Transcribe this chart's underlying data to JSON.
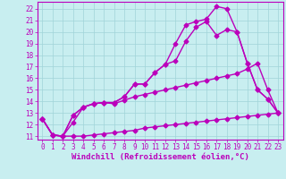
{
  "background_color": "#c8eef0",
  "grid_color": "#a0d4d8",
  "line_color": "#bb00bb",
  "marker": "D",
  "markersize": 2.5,
  "linewidth": 1.0,
  "xlim": [
    -0.5,
    23.5
  ],
  "ylim": [
    10.7,
    22.6
  ],
  "xticks": [
    0,
    1,
    2,
    3,
    4,
    5,
    6,
    7,
    8,
    9,
    10,
    11,
    12,
    13,
    14,
    15,
    16,
    17,
    18,
    19,
    20,
    21,
    22,
    23
  ],
  "yticks": [
    11,
    12,
    13,
    14,
    15,
    16,
    17,
    18,
    19,
    20,
    21,
    22
  ],
  "xlabel": "Windchill (Refroidissement éolien,°C)",
  "xlabel_fontsize": 6.5,
  "tick_fontsize": 5.5,
  "series": [
    {
      "x": [
        0,
        1,
        2,
        3,
        4,
        5,
        6,
        7,
        8,
        9,
        10,
        11,
        12,
        13,
        14,
        15,
        16,
        17,
        18,
        19,
        20,
        21,
        22,
        23
      ],
      "y": [
        12.5,
        11.1,
        11.0,
        11.0,
        11.0,
        11.1,
        11.2,
        11.3,
        11.4,
        11.5,
        11.7,
        11.8,
        11.9,
        12.0,
        12.1,
        12.2,
        12.3,
        12.4,
        12.5,
        12.6,
        12.7,
        12.8,
        12.9,
        13.0
      ]
    },
    {
      "x": [
        0,
        1,
        2,
        3,
        4,
        5,
        6,
        7,
        8,
        9,
        10,
        11,
        12,
        13,
        14,
        15,
        16,
        17,
        18,
        19,
        20,
        21,
        22,
        23
      ],
      "y": [
        12.5,
        11.1,
        11.0,
        12.2,
        13.5,
        13.8,
        13.9,
        13.8,
        14.1,
        14.4,
        14.6,
        14.8,
        15.0,
        15.2,
        15.4,
        15.6,
        15.8,
        16.0,
        16.2,
        16.4,
        16.8,
        17.3,
        15.0,
        13.0
      ]
    },
    {
      "x": [
        0,
        1,
        2,
        3,
        4,
        5,
        6,
        7,
        8,
        9,
        10,
        11,
        12,
        13,
        14,
        15,
        16,
        17,
        18,
        19,
        20,
        21,
        22,
        23
      ],
      "y": [
        12.5,
        11.1,
        11.0,
        12.8,
        13.5,
        13.8,
        13.9,
        13.9,
        14.4,
        15.5,
        15.5,
        16.5,
        17.2,
        17.5,
        19.2,
        20.4,
        20.9,
        19.7,
        20.2,
        20.0,
        17.3,
        15.0,
        14.2,
        13.0
      ]
    },
    {
      "x": [
        0,
        1,
        2,
        3,
        4,
        5,
        6,
        7,
        8,
        9,
        10,
        11,
        12,
        13,
        14,
        15,
        16,
        17,
        18,
        19,
        20,
        21,
        22,
        23
      ],
      "y": [
        12.5,
        11.1,
        11.0,
        12.8,
        13.5,
        13.8,
        13.9,
        13.9,
        14.4,
        15.5,
        15.5,
        16.5,
        17.2,
        19.0,
        20.6,
        20.9,
        21.1,
        22.2,
        22.0,
        20.0,
        17.3,
        15.0,
        14.2,
        13.0
      ]
    }
  ]
}
